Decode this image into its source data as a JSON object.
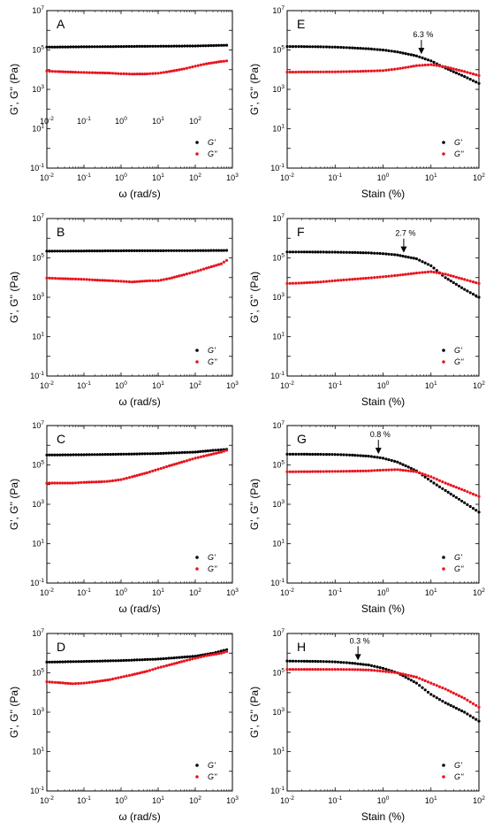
{
  "colors": {
    "Gp": "#000000",
    "Gpp": "#e8141e",
    "frame": "#000000",
    "background": "#ffffff"
  },
  "chart_data": [
    {
      "id": "A",
      "type": "scatter",
      "letter": "A",
      "xscale": "log",
      "yscale": "log",
      "xlim": [
        0.01,
        1000
      ],
      "ylim": [
        0.1,
        10000000
      ],
      "xticks": [
        "10-2",
        "10-1",
        "100",
        "101",
        "102",
        "103"
      ],
      "yticks": [
        "10-1",
        "101",
        "103",
        "105",
        "107"
      ],
      "xlabel": "ω (rad/s)",
      "ylabel": "G', G'' (Pa)",
      "legend": [
        "G'",
        "G''"
      ],
      "overlay_xticks": [
        "10-2",
        "10-1",
        "100",
        "101",
        "102"
      ],
      "series": [
        {
          "name": "G'",
          "key": "Gp",
          "x": [
            0.01,
            0.1,
            1,
            10,
            100,
            700
          ],
          "y": [
            140000,
            145000,
            150000,
            155000,
            160000,
            175000
          ]
        },
        {
          "name": "G''",
          "key": "Gpp",
          "x": [
            0.01,
            0.02,
            0.05,
            0.1,
            0.2,
            0.5,
            1,
            2,
            5,
            10,
            20,
            50,
            100,
            200,
            500,
            700
          ],
          "y": [
            8500,
            8000,
            7500,
            7200,
            7000,
            6700,
            6200,
            6000,
            6100,
            6600,
            8000,
            11000,
            15000,
            20000,
            26000,
            28000
          ]
        }
      ]
    },
    {
      "id": "E",
      "type": "scatter",
      "letter": "E",
      "xscale": "log",
      "yscale": "log",
      "xlim": [
        0.01,
        100
      ],
      "ylim": [
        0.1,
        10000000
      ],
      "xticks": [
        "10-2",
        "10-1",
        "100",
        "101",
        "102"
      ],
      "yticks": [
        "10-1",
        "101",
        "103",
        "105",
        "107"
      ],
      "xlabel": "Stain (%)",
      "ylabel": "G', G'' (Pa)",
      "legend": [
        "G'",
        "G''"
      ],
      "annotation": {
        "text": "6.3 %",
        "x": 6.3
      },
      "series": [
        {
          "name": "G'",
          "key": "Gp",
          "x": [
            0.01,
            0.02,
            0.05,
            0.1,
            0.2,
            0.5,
            1,
            2,
            5,
            10,
            20,
            50,
            100
          ],
          "y": [
            150000,
            149000,
            145000,
            140000,
            130000,
            115000,
            100000,
            80000,
            50000,
            28000,
            12000,
            4500,
            2000
          ]
        },
        {
          "name": "G''",
          "key": "Gpp",
          "x": [
            0.01,
            0.02,
            0.05,
            0.1,
            0.2,
            0.5,
            1,
            2,
            5,
            10,
            20,
            50,
            100
          ],
          "y": [
            7500,
            7600,
            7700,
            7800,
            8000,
            8500,
            9000,
            11000,
            16000,
            18000,
            14000,
            8000,
            5000
          ]
        }
      ]
    },
    {
      "id": "B",
      "type": "scatter",
      "letter": "B",
      "xscale": "log",
      "yscale": "log",
      "xlim": [
        0.01,
        1000
      ],
      "ylim": [
        0.1,
        10000000
      ],
      "xticks": [
        "10-2",
        "10-1",
        "100",
        "101",
        "102",
        "103"
      ],
      "yticks": [
        "10-1",
        "101",
        "103",
        "105",
        "107"
      ],
      "xlabel": "ω (rad/s)",
      "ylabel": "G', G'' (Pa)",
      "legend": [
        "G'",
        "G''"
      ],
      "series": [
        {
          "name": "G'",
          "key": "Gp",
          "x": [
            0.01,
            0.1,
            1,
            10,
            100,
            700
          ],
          "y": [
            220000,
            225000,
            230000,
            232000,
            235000,
            240000
          ]
        },
        {
          "name": "G''",
          "key": "Gpp",
          "x": [
            0.01,
            0.02,
            0.05,
            0.1,
            0.2,
            0.5,
            1,
            2,
            5,
            10,
            20,
            50,
            100,
            200,
            500,
            700
          ],
          "y": [
            9500,
            9000,
            8500,
            8200,
            7500,
            7000,
            6500,
            6000,
            6800,
            7000,
            9000,
            14000,
            20000,
            30000,
            50000,
            75000
          ]
        }
      ]
    },
    {
      "id": "F",
      "type": "scatter",
      "letter": "F",
      "xscale": "log",
      "yscale": "log",
      "xlim": [
        0.01,
        100
      ],
      "ylim": [
        0.1,
        10000000
      ],
      "xticks": [
        "10-2",
        "10-1",
        "100",
        "101",
        "102"
      ],
      "yticks": [
        "10-1",
        "101",
        "103",
        "105",
        "107"
      ],
      "xlabel": "Stain (%)",
      "ylabel": "G', G'' (Pa)",
      "legend": [
        "G'",
        "G''"
      ],
      "annotation": {
        "text": "2.7 %",
        "x": 2.7
      },
      "series": [
        {
          "name": "G'",
          "key": "Gp",
          "x": [
            0.01,
            0.02,
            0.05,
            0.1,
            0.2,
            0.5,
            1,
            2,
            5,
            10,
            20,
            50,
            100
          ],
          "y": [
            200000,
            200000,
            198000,
            195000,
            190000,
            180000,
            165000,
            140000,
            90000,
            40000,
            10000,
            2500,
            1000
          ]
        },
        {
          "name": "G''",
          "key": "Gpp",
          "x": [
            0.01,
            0.02,
            0.05,
            0.1,
            0.2,
            0.5,
            1,
            2,
            5,
            10,
            20,
            50,
            100
          ],
          "y": [
            5000,
            5300,
            6000,
            7000,
            8000,
            9500,
            11000,
            13000,
            17000,
            20000,
            15000,
            8000,
            5000
          ]
        }
      ]
    },
    {
      "id": "C",
      "type": "scatter",
      "letter": "C",
      "xscale": "log",
      "yscale": "log",
      "xlim": [
        0.01,
        1000
      ],
      "ylim": [
        0.1,
        10000000
      ],
      "xticks": [
        "10-2",
        "10-1",
        "100",
        "101",
        "102",
        "103"
      ],
      "yticks": [
        "10-1",
        "101",
        "103",
        "105",
        "107"
      ],
      "xlabel": "ω (rad/s)",
      "ylabel": "G', G'' (Pa)",
      "legend": [
        "G'",
        "G''"
      ],
      "series": [
        {
          "name": "G'",
          "key": "Gp",
          "x": [
            0.01,
            0.1,
            1,
            10,
            100,
            300,
            700
          ],
          "y": [
            320000,
            330000,
            350000,
            380000,
            450000,
            550000,
            620000
          ]
        },
        {
          "name": "G''",
          "key": "Gpp",
          "x": [
            0.01,
            0.05,
            0.1,
            0.3,
            0.5,
            1,
            2,
            5,
            10,
            20,
            50,
            100,
            200,
            500,
            700
          ],
          "y": [
            12000,
            12000,
            13000,
            14000,
            15000,
            18000,
            25000,
            40000,
            60000,
            90000,
            150000,
            220000,
            300000,
            450000,
            550000
          ]
        }
      ]
    },
    {
      "id": "G",
      "type": "scatter",
      "letter": "G",
      "xscale": "log",
      "yscale": "log",
      "xlim": [
        0.01,
        100
      ],
      "ylim": [
        0.1,
        10000000
      ],
      "xticks": [
        "10-2",
        "10-1",
        "100",
        "101",
        "102"
      ],
      "yticks": [
        "10-1",
        "101",
        "103",
        "105",
        "107"
      ],
      "xlabel": "Stain (%)",
      "ylabel": "G', G'' (Pa)",
      "legend": [
        "G'",
        "G''"
      ],
      "annotation": {
        "text": "0.8 %",
        "x": 0.8
      },
      "series": [
        {
          "name": "G'",
          "key": "Gp",
          "x": [
            0.01,
            0.02,
            0.05,
            0.1,
            0.2,
            0.5,
            1,
            2,
            5,
            10,
            20,
            50,
            100
          ],
          "y": [
            350000,
            350000,
            345000,
            340000,
            320000,
            280000,
            220000,
            140000,
            50000,
            15000,
            5000,
            1200,
            400
          ]
        },
        {
          "name": "G''",
          "key": "Gpp",
          "x": [
            0.01,
            0.02,
            0.05,
            0.1,
            0.2,
            0.5,
            1,
            2,
            5,
            10,
            20,
            50,
            100
          ],
          "y": [
            45000,
            45500,
            46000,
            47000,
            48000,
            50000,
            55000,
            58000,
            45000,
            25000,
            12000,
            5000,
            2500
          ]
        }
      ]
    },
    {
      "id": "D",
      "type": "scatter",
      "letter": "D",
      "xscale": "log",
      "yscale": "log",
      "xlim": [
        0.01,
        1000
      ],
      "ylim": [
        0.1,
        10000000
      ],
      "xticks": [
        "10-2",
        "10-1",
        "100",
        "101",
        "102",
        "103"
      ],
      "yticks": [
        "10-1",
        "101",
        "103",
        "105",
        "107"
      ],
      "xlabel": "ω (rad/s)",
      "ylabel": "G', G'' (Pa)",
      "legend": [
        "G'",
        "G''"
      ],
      "series": [
        {
          "name": "G'",
          "key": "Gp",
          "x": [
            0.01,
            0.1,
            1,
            10,
            100,
            300,
            700
          ],
          "y": [
            350000,
            380000,
            420000,
            500000,
            700000,
            1000000,
            1500000
          ]
        },
        {
          "name": "G''",
          "key": "Gpp",
          "x": [
            0.01,
            0.02,
            0.05,
            0.1,
            0.2,
            0.5,
            1,
            2,
            5,
            10,
            20,
            50,
            100,
            200,
            500,
            700
          ],
          "y": [
            35000,
            32000,
            28000,
            30000,
            35000,
            45000,
            60000,
            80000,
            120000,
            180000,
            250000,
            400000,
            550000,
            750000,
            1000000,
            1200000
          ]
        }
      ]
    },
    {
      "id": "H",
      "type": "scatter",
      "letter": "H",
      "xscale": "log",
      "yscale": "log",
      "xlim": [
        0.01,
        100
      ],
      "ylim": [
        0.1,
        10000000
      ],
      "xticks": [
        "10-2",
        "10-1",
        "100",
        "101",
        "102"
      ],
      "yticks": [
        "10-1",
        "101",
        "103",
        "105",
        "107"
      ],
      "xlabel": "Stain (%)",
      "ylabel": "G', G'' (Pa)",
      "legend": [
        "G'",
        "G''"
      ],
      "annotation": {
        "text": "0.3 %",
        "x": 0.3
      },
      "series": [
        {
          "name": "G'",
          "key": "Gp",
          "x": [
            0.01,
            0.02,
            0.05,
            0.1,
            0.2,
            0.5,
            1,
            2,
            5,
            10,
            20,
            50,
            100
          ],
          "y": [
            400000,
            390000,
            380000,
            360000,
            320000,
            250000,
            170000,
            100000,
            30000,
            8000,
            3000,
            1000,
            350
          ]
        },
        {
          "name": "G''",
          "key": "Gpp",
          "x": [
            0.01,
            0.02,
            0.05,
            0.1,
            0.2,
            0.5,
            1,
            2,
            5,
            10,
            20,
            50,
            100
          ],
          "y": [
            150000,
            150000,
            150000,
            150000,
            148000,
            140000,
            120000,
            100000,
            60000,
            30000,
            15000,
            5000,
            1800
          ]
        }
      ]
    }
  ]
}
